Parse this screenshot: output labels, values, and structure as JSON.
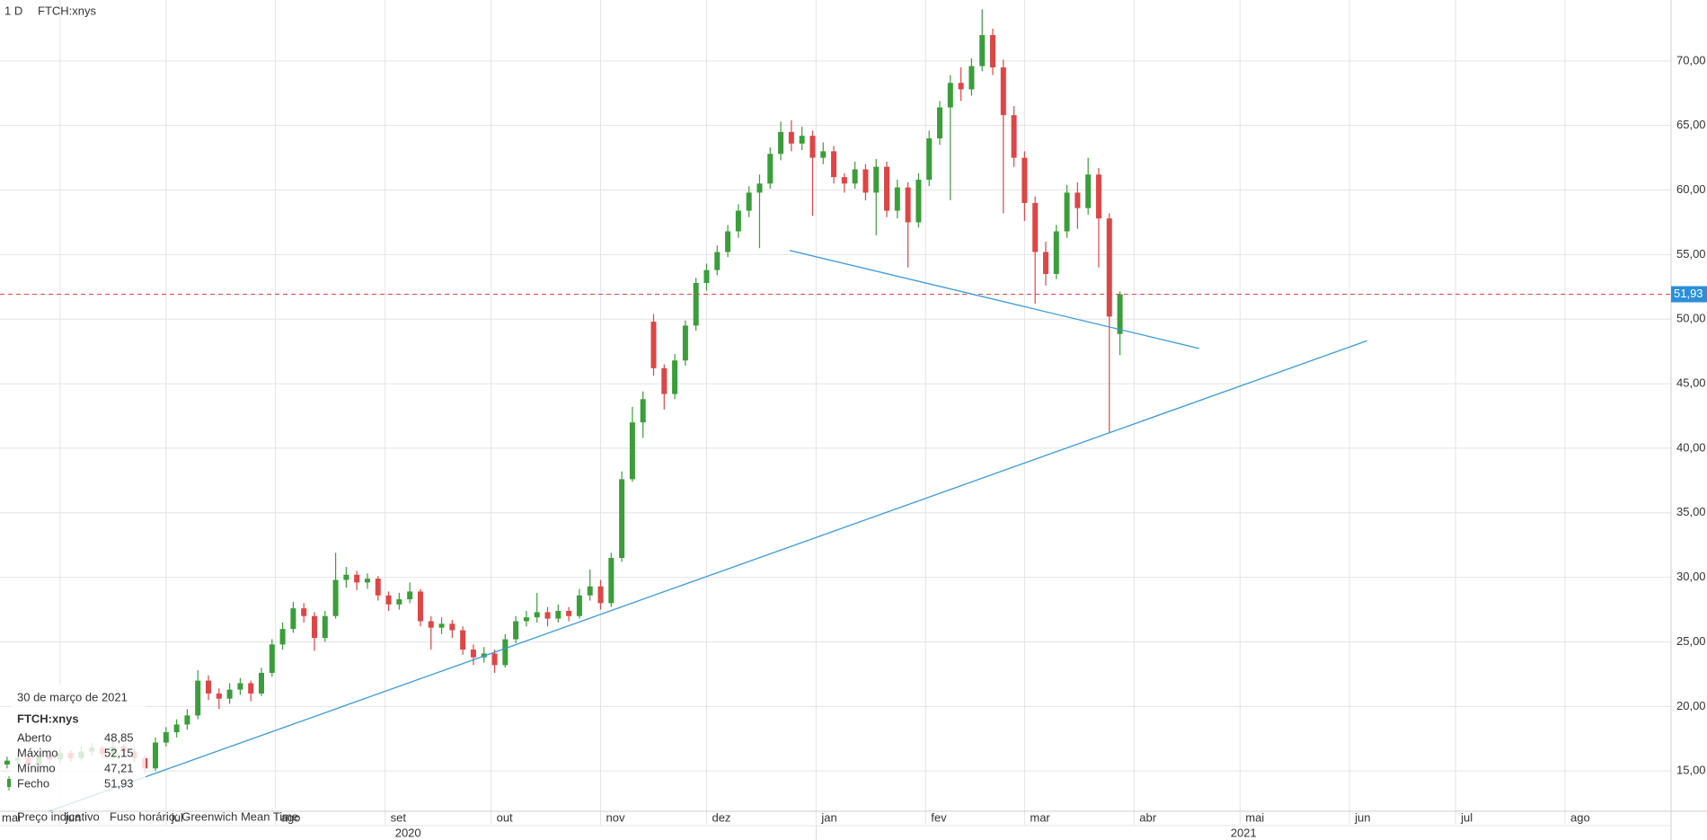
{
  "chart_data": {
    "type": "candlestick",
    "interval": "1 D",
    "symbol": "FTCH:xnys",
    "up_color": "#3a9e3a",
    "down_color": "#e04545",
    "grid": true,
    "xlim": [
      -17,
      456
    ],
    "xticks": [
      {
        "value": -31,
        "label": "mai"
      },
      {
        "value": 0,
        "label": "jun"
      },
      {
        "value": 30,
        "label": "jul"
      },
      {
        "value": 61,
        "label": "ago"
      },
      {
        "value": 92,
        "label": "set"
      },
      {
        "value": 122,
        "label": "out"
      },
      {
        "value": 153,
        "label": "nov"
      },
      {
        "value": 183,
        "label": "dez"
      },
      {
        "value": 214,
        "label": "jan"
      },
      {
        "value": 245,
        "label": "fev"
      },
      {
        "value": 273,
        "label": "mar"
      },
      {
        "value": 304,
        "label": "abr"
      },
      {
        "value": 334,
        "label": "mai"
      },
      {
        "value": 365,
        "label": "jun"
      },
      {
        "value": 395,
        "label": "jul"
      },
      {
        "value": 426,
        "label": "ago"
      }
    ],
    "year_ticks": [
      {
        "value": -17,
        "label": "2020"
      },
      {
        "value": 214,
        "label": "2021"
      }
    ],
    "ylim": [
      11.88,
      74.72
    ],
    "yticks": [
      {
        "value": 15,
        "label": "15,00"
      },
      {
        "value": 20,
        "label": "20,00"
      },
      {
        "value": 25,
        "label": "25,00"
      },
      {
        "value": 30,
        "label": "30,00"
      },
      {
        "value": 35,
        "label": "35,00"
      },
      {
        "value": 40,
        "label": "40,00"
      },
      {
        "value": 45,
        "label": "45,00"
      },
      {
        "value": 50,
        "label": "50,00"
      },
      {
        "value": 55,
        "label": "55,00"
      },
      {
        "value": 60,
        "label": "60,00"
      },
      {
        "value": 65,
        "label": "65,00"
      },
      {
        "value": 70,
        "label": "70,00"
      }
    ],
    "last_price": {
      "value": 51.93,
      "label": "51,93",
      "color": "#e04545",
      "label_color": "#2a8fd8"
    },
    "trendlines": [
      {
        "x": [
          -3.1,
          369.9
        ],
        "y": [
          11.88,
          48.32
        ],
        "color": "#3a9ad9"
      },
      {
        "x": [
          206.5,
          322.4
        ],
        "y": [
          55.32,
          47.73
        ],
        "color": "#3a9ad9"
      }
    ],
    "x": [
      -15,
      -12,
      -9,
      -6,
      -3,
      0,
      3,
      6,
      9,
      12,
      15,
      18,
      21,
      24,
      27,
      30,
      33,
      36,
      39,
      42,
      45,
      48,
      51,
      54,
      57,
      60,
      63,
      66,
      69,
      72,
      75,
      78,
      81,
      84,
      87,
      90,
      93,
      96,
      99,
      102,
      105,
      108,
      111,
      114,
      117,
      120,
      123,
      126,
      129,
      132,
      135,
      138,
      141,
      144,
      147,
      150,
      153,
      156,
      159,
      162,
      165,
      168,
      171,
      174,
      177,
      180,
      183,
      186,
      189,
      192,
      195,
      198,
      201,
      204,
      207,
      210,
      213,
      216,
      219,
      222,
      225,
      228,
      231,
      234,
      237,
      240,
      243,
      246,
      249,
      252,
      255,
      258,
      261,
      264,
      267,
      270,
      273,
      276,
      279,
      282,
      285,
      288,
      291,
      294,
      297,
      300
    ],
    "open": [
      15.5,
      15.8,
      16.0,
      15.5,
      16.2,
      15.9,
      16.4,
      16.0,
      16.5,
      16.8,
      16.3,
      16.9,
      16.5,
      16.0,
      15.2,
      17.2,
      18.0,
      18.6,
      19.3,
      22.0,
      21.0,
      20.6,
      21.3,
      21.8,
      21.0,
      22.6,
      24.8,
      26.0,
      27.6,
      27.0,
      25.3,
      27.0,
      29.8,
      30.2,
      29.6,
      29.9,
      28.6,
      27.9,
      28.3,
      28.9,
      26.6,
      26.1,
      26.4,
      25.9,
      24.4,
      23.8,
      24.1,
      23.2,
      25.2,
      26.6,
      26.9,
      27.3,
      26.8,
      27.4,
      27.0,
      28.6,
      29.3,
      28.0,
      31.5,
      37.6,
      42.0,
      49.8,
      46.2,
      44.2,
      46.8,
      49.5,
      52.8,
      53.8,
      55.2,
      56.8,
      58.4,
      59.8,
      60.5,
      62.8,
      64.5,
      63.6,
      64.2,
      62.5,
      63.0,
      61.0,
      60.5,
      61.6,
      59.8,
      61.8,
      58.4,
      60.2,
      57.5,
      60.8,
      64.0,
      66.4,
      68.3,
      67.8,
      69.6,
      72.0,
      69.5,
      65.8,
      62.5,
      59.0,
      55.2,
      53.5,
      56.8,
      59.8,
      58.6,
      61.2,
      57.8,
      48.85
    ],
    "high": [
      16.1,
      16.4,
      16.3,
      16.5,
      16.4,
      16.8,
      16.6,
      16.9,
      17.2,
      17.0,
      17.3,
      17.1,
      16.8,
      16.2,
      17.6,
      18.4,
      19.0,
      19.8,
      22.8,
      22.4,
      21.4,
      21.8,
      22.2,
      22.0,
      23.0,
      25.2,
      26.5,
      28.1,
      28.0,
      27.3,
      27.4,
      31.9,
      30.8,
      30.5,
      30.3,
      30.1,
      28.9,
      28.8,
      29.6,
      29.1,
      27.0,
      26.9,
      26.7,
      26.2,
      24.8,
      24.6,
      24.4,
      25.6,
      27.0,
      27.4,
      28.8,
      27.7,
      27.9,
      27.7,
      29.1,
      30.6,
      29.8,
      31.9,
      38.2,
      43.2,
      44.4,
      50.4,
      46.5,
      47.3,
      49.9,
      53.2,
      54.3,
      55.7,
      57.3,
      58.9,
      60.3,
      61.2,
      63.3,
      65.3,
      65.4,
      64.9,
      64.6,
      63.7,
      63.4,
      61.3,
      62.2,
      62.0,
      62.4,
      62.2,
      60.8,
      60.6,
      61.3,
      64.6,
      66.9,
      68.9,
      69.5,
      70.2,
      74.0,
      72.5,
      70.1,
      66.5,
      63.0,
      59.5,
      56.0,
      57.3,
      60.4,
      60.6,
      62.5,
      61.7,
      58.2,
      52.15
    ],
    "low": [
      15.2,
      15.5,
      15.2,
      15.3,
      15.6,
      15.6,
      15.7,
      15.8,
      16.2,
      16.0,
      16.1,
      16.2,
      15.7,
      14.8,
      15.0,
      16.9,
      17.6,
      18.2,
      19.0,
      20.5,
      19.8,
      20.2,
      20.9,
      20.4,
      20.8,
      22.3,
      24.4,
      25.7,
      26.5,
      24.3,
      25.0,
      26.8,
      29.2,
      29.0,
      29.1,
      28.2,
      27.4,
      27.5,
      28.0,
      26.2,
      24.4,
      25.6,
      25.3,
      24.0,
      23.2,
      23.4,
      22.6,
      23.0,
      24.9,
      26.2,
      26.5,
      26.2,
      26.5,
      26.6,
      26.8,
      28.2,
      27.5,
      27.7,
      31.2,
      37.4,
      40.8,
      45.6,
      43.0,
      43.8,
      46.4,
      49.1,
      52.2,
      53.4,
      54.8,
      56.3,
      57.9,
      55.5,
      60.1,
      62.3,
      63.0,
      63.1,
      58.0,
      62.0,
      60.5,
      59.8,
      60.1,
      59.2,
      56.5,
      57.9,
      57.8,
      54.0,
      57.1,
      60.3,
      63.5,
      59.2,
      66.9,
      67.3,
      69.2,
      68.9,
      58.2,
      61.8,
      57.6,
      51.2,
      52.6,
      53.1,
      56.3,
      57.0,
      58.1,
      54.0,
      41.2,
      47.21
    ],
    "close": [
      15.8,
      16.0,
      15.5,
      16.2,
      15.9,
      16.4,
      16.0,
      16.5,
      16.8,
      16.3,
      16.9,
      16.5,
      16.0,
      15.2,
      17.2,
      18.0,
      18.6,
      19.3,
      22.0,
      21.0,
      20.6,
      21.3,
      21.8,
      21.0,
      22.6,
      24.8,
      26.0,
      27.6,
      27.0,
      25.3,
      27.0,
      29.8,
      30.2,
      29.6,
      29.9,
      28.6,
      27.9,
      28.3,
      28.9,
      26.6,
      26.1,
      26.4,
      25.9,
      24.4,
      23.8,
      24.1,
      23.2,
      25.2,
      26.6,
      26.9,
      27.3,
      26.8,
      27.4,
      27.0,
      28.6,
      29.3,
      28.0,
      31.5,
      37.6,
      42.0,
      43.8,
      46.2,
      44.2,
      46.8,
      49.5,
      52.8,
      53.8,
      55.2,
      56.8,
      58.4,
      59.8,
      60.5,
      62.8,
      64.5,
      63.6,
      64.2,
      62.5,
      63.0,
      61.0,
      60.5,
      61.6,
      59.8,
      61.8,
      58.4,
      60.2,
      57.5,
      60.8,
      64.0,
      66.4,
      68.3,
      67.8,
      69.6,
      72.0,
      69.5,
      65.8,
      62.5,
      59.0,
      55.2,
      53.5,
      56.8,
      59.8,
      58.6,
      61.2,
      57.8,
      50.2,
      51.93
    ],
    "tooltip": {
      "date": "30 de março de 2021",
      "symbol": "FTCH:xnys",
      "rows": [
        {
          "label": "Aberto",
          "value": "48,85"
        },
        {
          "label": "Máximo",
          "value": "52,15"
        },
        {
          "label": "Mínimo",
          "value": "47,21"
        },
        {
          "label": "Fecho",
          "value": "51,93"
        }
      ],
      "note": "Preço indicativo",
      "timezone": "Fuso horário: Greenwich Mean Time"
    }
  }
}
